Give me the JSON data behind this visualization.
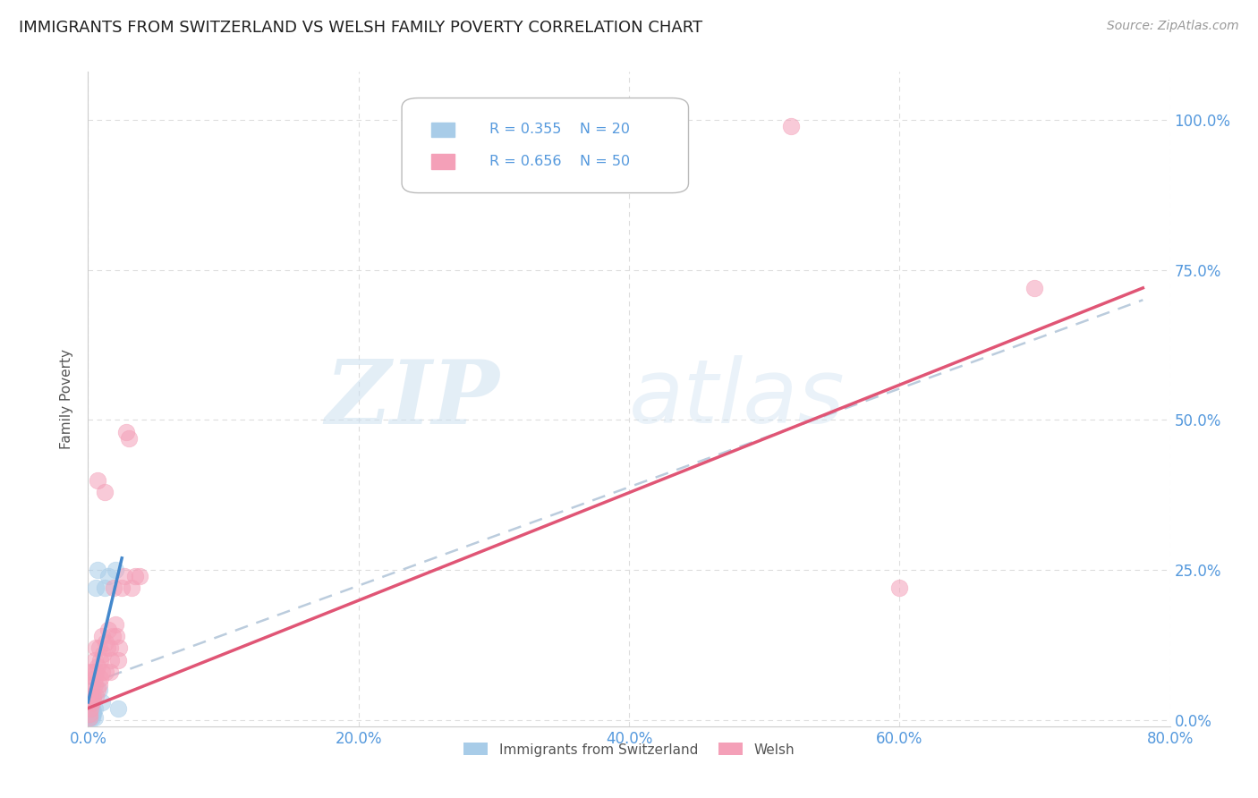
{
  "title": "IMMIGRANTS FROM SWITZERLAND VS WELSH FAMILY POVERTY CORRELATION CHART",
  "source": "Source: ZipAtlas.com",
  "ylabel": "Family Poverty",
  "xlim": [
    0.0,
    0.8
  ],
  "ylim": [
    -0.01,
    1.08
  ],
  "yticks": [
    0.0,
    0.25,
    0.5,
    0.75,
    1.0
  ],
  "xticks": [
    0.0,
    0.2,
    0.4,
    0.6,
    0.8
  ],
  "color_blue": "#a8cce8",
  "color_pink": "#f4a0b8",
  "color_blue_line": "#4488cc",
  "color_pink_line": "#e05575",
  "color_dash": "#bbccdd",
  "color_axis_label": "#5599dd",
  "background": "#ffffff",
  "grid_color": "#dddddd",
  "swiss_points": [
    [
      0.001,
      0.005
    ],
    [
      0.001,
      0.01
    ],
    [
      0.002,
      0.02
    ],
    [
      0.002,
      0.015
    ],
    [
      0.002,
      0.005
    ],
    [
      0.003,
      0.01
    ],
    [
      0.003,
      0.005
    ],
    [
      0.003,
      0.02
    ],
    [
      0.004,
      0.01
    ],
    [
      0.004,
      0.015
    ],
    [
      0.005,
      0.02
    ],
    [
      0.005,
      0.005
    ],
    [
      0.006,
      0.22
    ],
    [
      0.007,
      0.25
    ],
    [
      0.008,
      0.05
    ],
    [
      0.01,
      0.03
    ],
    [
      0.012,
      0.22
    ],
    [
      0.015,
      0.24
    ],
    [
      0.02,
      0.25
    ],
    [
      0.022,
      0.02
    ]
  ],
  "welsh_points": [
    [
      0.001,
      0.005
    ],
    [
      0.001,
      0.01
    ],
    [
      0.002,
      0.02
    ],
    [
      0.002,
      0.04
    ],
    [
      0.002,
      0.08
    ],
    [
      0.003,
      0.03
    ],
    [
      0.003,
      0.06
    ],
    [
      0.004,
      0.04
    ],
    [
      0.004,
      0.08
    ],
    [
      0.004,
      0.035
    ],
    [
      0.005,
      0.06
    ],
    [
      0.005,
      0.1
    ],
    [
      0.005,
      0.07
    ],
    [
      0.006,
      0.04
    ],
    [
      0.006,
      0.08
    ],
    [
      0.006,
      0.12
    ],
    [
      0.007,
      0.09
    ],
    [
      0.007,
      0.05
    ],
    [
      0.007,
      0.4
    ],
    [
      0.008,
      0.12
    ],
    [
      0.008,
      0.06
    ],
    [
      0.009,
      0.1
    ],
    [
      0.009,
      0.07
    ],
    [
      0.01,
      0.08
    ],
    [
      0.01,
      0.14
    ],
    [
      0.011,
      0.11
    ],
    [
      0.012,
      0.38
    ],
    [
      0.013,
      0.13
    ],
    [
      0.013,
      0.08
    ],
    [
      0.014,
      0.12
    ],
    [
      0.015,
      0.15
    ],
    [
      0.016,
      0.12
    ],
    [
      0.016,
      0.08
    ],
    [
      0.017,
      0.1
    ],
    [
      0.018,
      0.14
    ],
    [
      0.019,
      0.22
    ],
    [
      0.02,
      0.16
    ],
    [
      0.021,
      0.14
    ],
    [
      0.022,
      0.1
    ],
    [
      0.023,
      0.12
    ],
    [
      0.025,
      0.22
    ],
    [
      0.027,
      0.24
    ],
    [
      0.028,
      0.48
    ],
    [
      0.03,
      0.47
    ],
    [
      0.032,
      0.22
    ],
    [
      0.035,
      0.24
    ],
    [
      0.038,
      0.24
    ],
    [
      0.52,
      0.99
    ],
    [
      0.6,
      0.22
    ],
    [
      0.7,
      0.72
    ]
  ],
  "swiss_line": {
    "x": [
      0.0,
      0.025
    ],
    "y": [
      0.03,
      0.27
    ]
  },
  "welsh_line": {
    "x": [
      0.0,
      0.78
    ],
    "y": [
      0.02,
      0.72
    ]
  },
  "dash_line": {
    "x": [
      0.0,
      0.78
    ],
    "y": [
      0.06,
      0.7
    ]
  }
}
